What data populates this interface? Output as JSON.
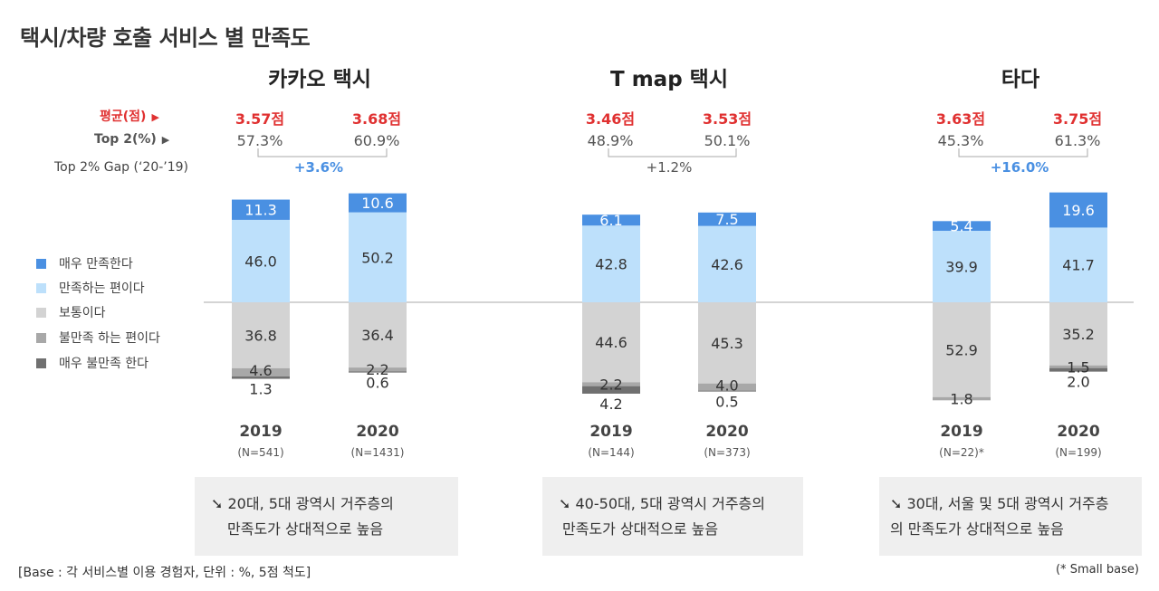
{
  "title": "택시/차량 호출 서비스 별 만족도",
  "row_labels": {
    "average": "평균(점)",
    "top2": "Top 2(%)",
    "gap": "Top 2% Gap (‘20-’19)"
  },
  "legend": [
    {
      "label": "매우 만족한다",
      "color": "#4a90e2"
    },
    {
      "label": "만족하는 편이다",
      "color": "#bde0fb"
    },
    {
      "label": "보통이다",
      "color": "#d3d3d3"
    },
    {
      "label": "불만족 하는 편이다",
      "color": "#a8a8a8"
    },
    {
      "label": "매우 불만족 한다",
      "color": "#707070"
    }
  ],
  "services": [
    {
      "name": "카카오 택시",
      "years": [
        {
          "year": "2019",
          "n": "(N=541)",
          "avg": "3.57점",
          "top2": "57.3%"
        },
        {
          "year": "2020",
          "n": "(N=1431)",
          "avg": "3.68점",
          "top2": "60.9%"
        }
      ],
      "gap": "+3.6%",
      "gap_highlight": true,
      "note": [
        "20대, 5대 광역시 거주층의",
        "만족도가 상대적으로 높음"
      ]
    },
    {
      "name": "T map 택시",
      "years": [
        {
          "year": "2019",
          "n": "(N=144)",
          "avg": "3.46점",
          "top2": "48.9%"
        },
        {
          "year": "2020",
          "n": "(N=373)",
          "avg": "3.53점",
          "top2": "50.1%"
        }
      ],
      "gap": "+1.2%",
      "gap_highlight": false,
      "note": [
        "40-50대, 5대 광역시 거주층의",
        "만족도가 상대적으로 높음"
      ]
    },
    {
      "name": "타다",
      "years": [
        {
          "year": "2019",
          "n": "(N=22)*",
          "avg": "3.63점",
          "top2": "45.3%"
        },
        {
          "year": "2020",
          "n": "(N=199)",
          "avg": "3.75점",
          "top2": "61.3%"
        }
      ],
      "gap": "+16.0%",
      "gap_highlight": true,
      "note": [
        "30대, 서울 및 5대 광역시 거주층",
        "의 만족도가 상대적으로 높음"
      ]
    }
  ],
  "note_icon": "arrow-down-right-icon",
  "base_note": "[Base :  각 서비스별 이용 경험자, 단위 : %, 5점 척도]",
  "small_base_note": "(* Small base)",
  "chart_data": {
    "type": "bar",
    "stacked": "diverging",
    "title": "택시/차량 호출 서비스 별 만족도",
    "unit": "%",
    "categories": [
      "카카오 택시 2019",
      "카카오 택시 2020",
      "T map 택시 2019",
      "T map 택시 2020",
      "타다 2019",
      "타다 2020"
    ],
    "series": [
      {
        "name": "매우 만족한다",
        "values": [
          11.3,
          10.6,
          6.1,
          7.5,
          5.4,
          19.6
        ]
      },
      {
        "name": "만족하는 편이다",
        "values": [
          46.0,
          50.2,
          42.8,
          42.6,
          39.9,
          41.7
        ]
      },
      {
        "name": "보통이다",
        "values": [
          36.8,
          36.4,
          44.6,
          45.3,
          52.9,
          35.2
        ]
      },
      {
        "name": "불만족 하는 편이다",
        "values": [
          4.6,
          2.2,
          2.2,
          4.0,
          1.8,
          1.5
        ]
      },
      {
        "name": "매우 불만족 한다",
        "values": [
          1.3,
          0.6,
          4.2,
          0.5,
          0.0,
          2.0
        ]
      }
    ]
  }
}
